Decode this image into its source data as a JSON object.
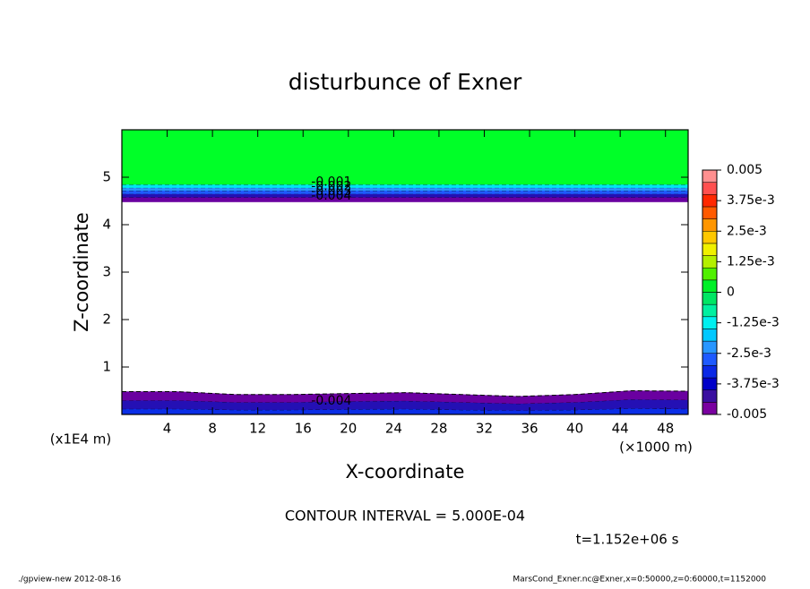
{
  "chart_data": {
    "type": "contour",
    "title": "disturbunce of Exner",
    "x_label": "X-coordinate",
    "y_label": "Z-coordinate",
    "x_unit": "(×1000 m)",
    "y_unit": "(x1E4 m)",
    "xlim": [
      0,
      50
    ],
    "ylim": [
      0,
      6
    ],
    "xticks": [
      4,
      8,
      12,
      16,
      20,
      24,
      28,
      32,
      36,
      40,
      44,
      48
    ],
    "yticks": [
      1,
      2,
      3,
      4,
      5
    ],
    "x_grid": [
      0,
      5,
      10,
      15,
      20,
      25,
      30,
      35,
      40,
      45,
      50
    ],
    "layers": [
      {
        "color": "#0a2ee6",
        "lower": [
          0,
          0,
          0,
          0,
          0,
          0,
          0,
          0,
          0,
          0,
          0
        ],
        "upper": [
          0.12,
          0.12,
          0.1,
          0.1,
          0.11,
          0.12,
          0.1,
          0.09,
          0.1,
          0.13,
          0.12
        ]
      },
      {
        "color": "#2410b4",
        "lower": [
          0.12,
          0.12,
          0.1,
          0.1,
          0.11,
          0.12,
          0.1,
          0.09,
          0.1,
          0.13,
          0.12
        ],
        "upper": [
          0.3,
          0.3,
          0.26,
          0.26,
          0.28,
          0.29,
          0.26,
          0.23,
          0.26,
          0.32,
          0.31
        ]
      },
      {
        "color": "#6a00a0",
        "lower": [
          0.3,
          0.3,
          0.26,
          0.26,
          0.28,
          0.29,
          0.26,
          0.23,
          0.26,
          0.32,
          0.31
        ],
        "upper": [
          0.48,
          0.48,
          0.42,
          0.42,
          0.44,
          0.46,
          0.42,
          0.38,
          0.42,
          0.5,
          0.49
        ]
      },
      {
        "color": "#6a00a0",
        "lower": [
          4.48,
          4.48,
          4.48,
          4.48,
          4.48,
          4.48,
          4.48,
          4.48,
          4.48,
          4.48,
          4.48
        ],
        "upper": [
          4.58,
          4.58,
          4.58,
          4.58,
          4.58,
          4.58,
          4.58,
          4.58,
          4.58,
          4.58,
          4.58
        ]
      },
      {
        "color": "#2410b4",
        "lower": [
          4.58,
          4.58,
          4.58,
          4.58,
          4.58,
          4.58,
          4.58,
          4.58,
          4.58,
          4.58,
          4.58
        ],
        "upper": [
          4.65,
          4.65,
          4.65,
          4.65,
          4.65,
          4.65,
          4.65,
          4.65,
          4.65,
          4.65,
          4.65
        ]
      },
      {
        "color": "#1e5aff",
        "lower": [
          4.65,
          4.65,
          4.65,
          4.65,
          4.65,
          4.65,
          4.65,
          4.65,
          4.65,
          4.65,
          4.65
        ],
        "upper": [
          4.72,
          4.72,
          4.72,
          4.72,
          4.72,
          4.72,
          4.72,
          4.72,
          4.72,
          4.72,
          4.72
        ]
      },
      {
        "color": "#2896ff",
        "lower": [
          4.72,
          4.72,
          4.72,
          4.72,
          4.72,
          4.72,
          4.72,
          4.72,
          4.72,
          4.72,
          4.72
        ],
        "upper": [
          4.78,
          4.78,
          4.78,
          4.78,
          4.78,
          4.78,
          4.78,
          4.78,
          4.78,
          4.78,
          4.78
        ]
      },
      {
        "color": "#00e6f0",
        "lower": [
          4.78,
          4.78,
          4.78,
          4.78,
          4.78,
          4.78,
          4.78,
          4.78,
          4.78,
          4.78,
          4.78
        ],
        "upper": [
          4.85,
          4.85,
          4.85,
          4.85,
          4.85,
          4.85,
          4.85,
          4.85,
          4.85,
          4.85,
          4.85
        ]
      },
      {
        "color": "#00ff28",
        "lower": [
          4.85,
          4.85,
          4.85,
          4.85,
          4.85,
          4.85,
          4.85,
          4.85,
          4.85,
          4.85,
          4.85
        ],
        "upper": [
          6,
          6,
          6,
          6,
          6,
          6,
          6,
          6,
          6,
          6,
          6
        ]
      }
    ],
    "contour_labels": [
      {
        "text": "-0.001",
        "x": 18.5,
        "y": 4.9
      },
      {
        "text": "-0.002",
        "x": 18.5,
        "y": 4.8
      },
      {
        "text": "-0.003",
        "x": 18.5,
        "y": 4.7
      },
      {
        "text": "-0.004",
        "x": 18.5,
        "y": 4.6
      },
      {
        "text": "-0.004",
        "x": 18.5,
        "y": 0.28
      }
    ],
    "colorbar": {
      "levels": [
        -0.005,
        -0.0045,
        -0.004,
        -0.0035,
        -0.003,
        -0.0025,
        -0.002,
        -0.0015,
        -0.001,
        -0.0005,
        0,
        0.0005,
        0.001,
        0.0015,
        0.002,
        0.0025,
        0.003,
        0.0035,
        0.004,
        0.0045,
        0.005
      ],
      "colors": [
        "#7a00a0",
        "#3a0fa0",
        "#0000c8",
        "#0a28e6",
        "#1e5aff",
        "#2896ff",
        "#00c8ff",
        "#00f0f0",
        "#00f0a0",
        "#00e664",
        "#00f028",
        "#50f000",
        "#b4f000",
        "#f0f000",
        "#ffc800",
        "#ff9600",
        "#ff5a00",
        "#ff2800",
        "#ff5050",
        "#ff9090"
      ],
      "ticks": [
        0.005,
        {
          "value": 0.00375,
          "label": "3.75e-3"
        },
        {
          "value": 0.0025,
          "label": "2.5e-3"
        },
        {
          "value": 0.00125,
          "label": "1.25e-3"
        },
        0,
        {
          "value": -0.00125,
          "label": "-1.25e-3"
        },
        {
          "value": -0.0025,
          "label": "-2.5e-3"
        },
        {
          "value": -0.00375,
          "label": "-3.75e-3"
        },
        -0.005
      ]
    },
    "contour_interval_text": "CONTOUR INTERVAL = 5.000E-04",
    "time_text": "t=1.152e+06 s",
    "footer_left": "./gpview-new  2012-08-16",
    "footer_right": "MarsCond_Exner.nc@Exner,x=0:50000,z=0:60000,t=1152000"
  }
}
